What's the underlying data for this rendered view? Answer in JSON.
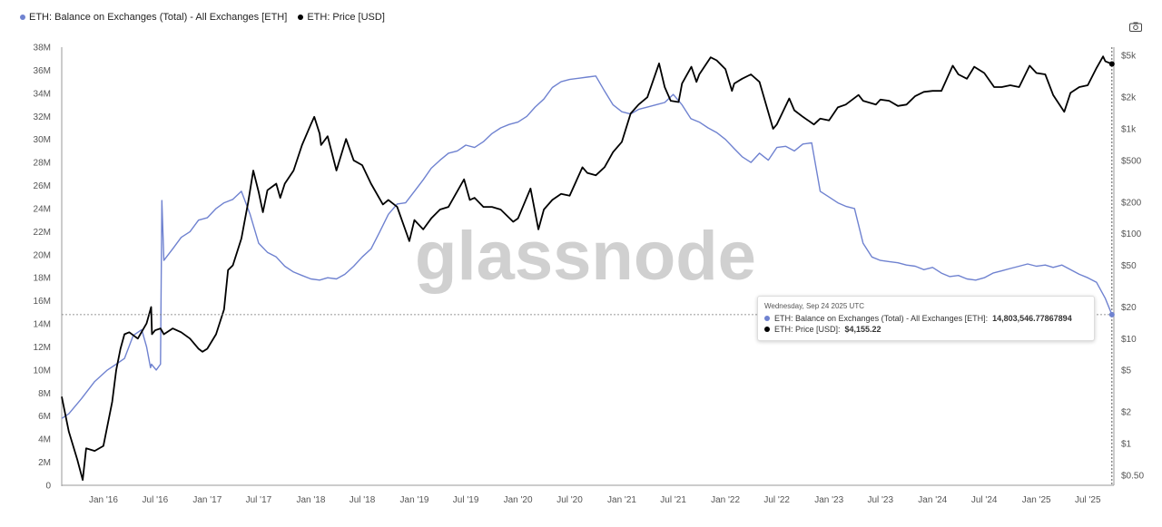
{
  "legend": [
    {
      "label": "ETH: Balance on Exchanges (Total) - All Exchanges [ETH]",
      "color": "#6f82d0"
    },
    {
      "label": "ETH: Price [USD]",
      "color": "#000000"
    }
  ],
  "watermark": "glassnode",
  "camera_icon": "camera-icon",
  "tooltip": {
    "date": "Wednesday, Sep 24 2025 UTC",
    "rows": [
      {
        "label": "ETH: Balance on Exchanges (Total) - All Exchanges [ETH]:",
        "value": "14,803,546.77867894",
        "color": "#6f82d0"
      },
      {
        "label": "ETH: Price [USD]:",
        "value": "$4,155.22",
        "color": "#000000"
      }
    ]
  },
  "chart_data": {
    "type": "line",
    "x_ticks": [
      "Jan '16",
      "Jul '16",
      "Jan '17",
      "Jul '17",
      "Jan '18",
      "Jul '18",
      "Jan '19",
      "Jul '19",
      "Jan '20",
      "Jul '20",
      "Jan '21",
      "Jul '21",
      "Jan '22",
      "Jul '22",
      "Jan '23",
      "Jul '23",
      "Jan '24",
      "Jul '24",
      "Jan '25",
      "Jul '25"
    ],
    "y_left_ticks": [
      "0",
      "2M",
      "4M",
      "6M",
      "8M",
      "10M",
      "12M",
      "14M",
      "16M",
      "18M",
      "20M",
      "22M",
      "24M",
      "26M",
      "28M",
      "30M",
      "32M",
      "34M",
      "36M",
      "38M"
    ],
    "y_right_ticks": [
      "$0.50",
      "$1",
      "$2",
      "$5",
      "$10",
      "$20",
      "$50",
      "$100",
      "$200",
      "$500",
      "$1k",
      "$2k",
      "$5k"
    ],
    "y_left_range": [
      0,
      38000000
    ],
    "y_right_scale": "log",
    "y_right_range": [
      0.4,
      6000
    ],
    "x_range": [
      "2015-08-07",
      "2025-10-01"
    ],
    "grid": false,
    "series": [
      {
        "name": "ETH: Balance on Exchanges (Total) - All Exchanges [ETH]",
        "axis": "left",
        "color": "#6f82d0",
        "x": [
          "2015-08-07",
          "2015-09-01",
          "2015-10-15",
          "2015-12-01",
          "2016-01-15",
          "2016-02-15",
          "2016-03-15",
          "2016-04-15",
          "2016-05-15",
          "2016-06-01",
          "2016-06-15",
          "2016-06-18",
          "2016-07-05",
          "2016-07-20",
          "2016-07-25",
          "2016-08-01",
          "2016-09-01",
          "2016-10-01",
          "2016-11-01",
          "2016-12-01",
          "2017-01-01",
          "2017-02-01",
          "2017-03-01",
          "2017-04-01",
          "2017-05-01",
          "2017-06-01",
          "2017-07-01",
          "2017-08-01",
          "2017-09-01",
          "2017-10-01",
          "2017-11-01",
          "2017-12-01",
          "2018-01-01",
          "2018-02-01",
          "2018-03-01",
          "2018-04-01",
          "2018-05-01",
          "2018-06-01",
          "2018-07-01",
          "2018-08-01",
          "2018-09-01",
          "2018-10-01",
          "2018-11-01",
          "2018-12-01",
          "2019-01-01",
          "2019-02-01",
          "2019-03-01",
          "2019-04-01",
          "2019-05-01",
          "2019-06-01",
          "2019-07-01",
          "2019-08-01",
          "2019-09-01",
          "2019-10-01",
          "2019-11-01",
          "2019-12-01",
          "2020-01-01",
          "2020-02-01",
          "2020-03-01",
          "2020-04-01",
          "2020-05-01",
          "2020-06-01",
          "2020-07-01",
          "2020-08-01",
          "2020-09-01",
          "2020-10-01",
          "2020-11-01",
          "2020-12-01",
          "2021-01-01",
          "2021-02-01",
          "2021-03-01",
          "2021-04-01",
          "2021-05-01",
          "2021-06-01",
          "2021-07-01",
          "2021-08-01",
          "2021-09-01",
          "2021-10-01",
          "2021-11-01",
          "2021-12-01",
          "2022-01-01",
          "2022-02-01",
          "2022-03-01",
          "2022-04-01",
          "2022-05-01",
          "2022-06-01",
          "2022-07-01",
          "2022-08-01",
          "2022-09-01",
          "2022-10-01",
          "2022-11-01",
          "2022-12-01",
          "2023-01-01",
          "2023-02-01",
          "2023-03-01",
          "2023-04-01",
          "2023-05-01",
          "2023-06-01",
          "2023-07-01",
          "2023-08-01",
          "2023-09-01",
          "2023-10-01",
          "2023-11-01",
          "2023-12-01",
          "2024-01-01",
          "2024-02-01",
          "2024-03-01",
          "2024-04-01",
          "2024-05-01",
          "2024-06-01",
          "2024-07-01",
          "2024-08-01",
          "2024-09-01",
          "2024-10-01",
          "2024-11-01",
          "2024-12-01",
          "2025-01-01",
          "2025-02-01",
          "2025-03-01",
          "2025-04-01",
          "2025-05-01",
          "2025-06-01",
          "2025-07-01",
          "2025-08-01",
          "2025-09-01",
          "2025-09-24"
        ],
        "values": [
          5800000,
          6200000,
          7500000,
          9000000,
          10000000,
          10500000,
          11000000,
          13000000,
          13500000,
          12000000,
          10200000,
          10500000,
          10000000,
          10500000,
          24700000,
          19500000,
          20500000,
          21500000,
          22000000,
          23000000,
          23200000,
          24000000,
          24500000,
          24800000,
          25500000,
          23500000,
          21000000,
          20200000,
          19800000,
          19000000,
          18500000,
          18200000,
          17900000,
          17800000,
          18000000,
          17900000,
          18300000,
          19000000,
          19800000,
          20500000,
          22000000,
          23500000,
          24400000,
          24500000,
          25500000,
          26500000,
          27500000,
          28200000,
          28800000,
          29000000,
          29500000,
          29300000,
          29800000,
          30500000,
          31000000,
          31300000,
          31500000,
          32000000,
          32800000,
          33500000,
          34500000,
          35000000,
          35200000,
          35300000,
          35400000,
          35500000,
          34200000,
          33000000,
          32400000,
          32200000,
          32600000,
          32800000,
          33000000,
          33200000,
          33900000,
          33000000,
          31800000,
          31500000,
          31000000,
          30600000,
          30000000,
          29200000,
          28500000,
          28000000,
          28800000,
          28200000,
          29300000,
          29400000,
          29000000,
          29600000,
          29700000,
          25500000,
          25000000,
          24500000,
          24200000,
          24000000,
          21000000,
          19800000,
          19500000,
          19400000,
          19300000,
          19100000,
          19000000,
          18700000,
          18900000,
          18400000,
          18100000,
          18200000,
          17900000,
          17800000,
          18000000,
          18400000,
          18600000,
          18800000,
          19000000,
          19200000,
          19000000,
          19100000,
          18900000,
          19100000,
          18700000,
          18300000,
          18000000,
          17600000,
          16200000,
          14803546
        ]
      },
      {
        "name": "ETH: Price [USD]",
        "axis": "right",
        "color": "#000000",
        "x": [
          "2015-08-07",
          "2015-09-01",
          "2015-10-01",
          "2015-10-20",
          "2015-11-01",
          "2015-12-01",
          "2016-01-01",
          "2016-02-01",
          "2016-02-15",
          "2016-03-01",
          "2016-03-15",
          "2016-04-01",
          "2016-05-01",
          "2016-06-01",
          "2016-06-17",
          "2016-06-20",
          "2016-07-01",
          "2016-07-20",
          "2016-08-01",
          "2016-09-01",
          "2016-10-01",
          "2016-11-01",
          "2016-12-01",
          "2016-12-15",
          "2017-01-01",
          "2017-02-01",
          "2017-03-01",
          "2017-03-15",
          "2017-04-01",
          "2017-05-01",
          "2017-05-25",
          "2017-06-12",
          "2017-07-01",
          "2017-07-16",
          "2017-08-01",
          "2017-09-01",
          "2017-09-15",
          "2017-10-01",
          "2017-11-01",
          "2017-12-01",
          "2018-01-01",
          "2018-01-13",
          "2018-02-01",
          "2018-02-06",
          "2018-03-01",
          "2018-04-01",
          "2018-05-05",
          "2018-06-01",
          "2018-07-01",
          "2018-08-01",
          "2018-09-12",
          "2018-10-01",
          "2018-11-01",
          "2018-12-14",
          "2019-01-01",
          "2019-02-01",
          "2019-03-01",
          "2019-04-01",
          "2019-05-01",
          "2019-06-25",
          "2019-07-15",
          "2019-08-01",
          "2019-09-01",
          "2019-10-01",
          "2019-11-01",
          "2019-12-15",
          "2020-01-01",
          "2020-02-14",
          "2020-03-13",
          "2020-04-01",
          "2020-05-01",
          "2020-06-01",
          "2020-07-01",
          "2020-08-15",
          "2020-09-01",
          "2020-10-01",
          "2020-11-01",
          "2020-12-01",
          "2021-01-01",
          "2021-02-01",
          "2021-03-01",
          "2021-04-01",
          "2021-05-12",
          "2021-06-01",
          "2021-06-22",
          "2021-07-20",
          "2021-08-01",
          "2021-09-03",
          "2021-09-21",
          "2021-10-01",
          "2021-11-10",
          "2021-12-01",
          "2022-01-01",
          "2022-01-24",
          "2022-02-01",
          "2022-03-01",
          "2022-04-01",
          "2022-05-01",
          "2022-06-18",
          "2022-07-01",
          "2022-08-14",
          "2022-09-01",
          "2022-10-01",
          "2022-11-09",
          "2022-12-01",
          "2023-01-01",
          "2023-02-01",
          "2023-03-01",
          "2023-04-15",
          "2023-05-01",
          "2023-06-15",
          "2023-07-01",
          "2023-08-01",
          "2023-09-01",
          "2023-10-01",
          "2023-11-01",
          "2023-12-01",
          "2024-01-01",
          "2024-02-01",
          "2024-03-12",
          "2024-04-01",
          "2024-05-01",
          "2024-05-27",
          "2024-07-01",
          "2024-08-05",
          "2024-09-01",
          "2024-10-01",
          "2024-11-01",
          "2024-12-08",
          "2025-01-01",
          "2025-02-01",
          "2025-03-01",
          "2025-04-09",
          "2025-05-01",
          "2025-06-01",
          "2025-07-01",
          "2025-08-01",
          "2025-08-24",
          "2025-09-01",
          "2025-09-24"
        ],
        "values": [
          2.8,
          1.3,
          0.7,
          0.45,
          0.9,
          0.85,
          0.95,
          2.5,
          5.0,
          8.0,
          11.0,
          11.5,
          10.0,
          14.0,
          20.0,
          11.0,
          12.0,
          12.5,
          11.0,
          12.5,
          11.5,
          10.0,
          8.0,
          7.5,
          8.0,
          11.0,
          19.0,
          45.0,
          50.0,
          90.0,
          200.0,
          400.0,
          250.0,
          160.0,
          260.0,
          300.0,
          220.0,
          300.0,
          400.0,
          700.0,
          1100.0,
          1300.0,
          900.0,
          700.0,
          850.0,
          400.0,
          800.0,
          500.0,
          450.0,
          300.0,
          190.0,
          210.0,
          180.0,
          85.0,
          135.0,
          110.0,
          140.0,
          170.0,
          180.0,
          330.0,
          210.0,
          220.0,
          180.0,
          180.0,
          170.0,
          130.0,
          140.0,
          270.0,
          110.0,
          170.0,
          210.0,
          240.0,
          230.0,
          430.0,
          380.0,
          360.0,
          430.0,
          600.0,
          750.0,
          1400.0,
          1700.0,
          2000.0,
          4200.0,
          2500.0,
          1850.0,
          1800.0,
          2700.0,
          3900.0,
          2800.0,
          3300.0,
          4800.0,
          4500.0,
          3700.0,
          2300.0,
          2700.0,
          3000.0,
          3300.0,
          2800.0,
          1000.0,
          1100.0,
          1950.0,
          1500.0,
          1300.0,
          1100.0,
          1250.0,
          1200.0,
          1600.0,
          1700.0,
          2100.0,
          1850.0,
          1700.0,
          1900.0,
          1850.0,
          1650.0,
          1700.0,
          2050.0,
          2250.0,
          2300.0,
          2300.0,
          4000.0,
          3300.0,
          3000.0,
          3900.0,
          3400.0,
          2500.0,
          2500.0,
          2600.0,
          2500.0,
          4000.0,
          3400.0,
          3300.0,
          2100.0,
          1450.0,
          2200.0,
          2500.0,
          2600.0,
          3800.0,
          4900.0,
          4400.0,
          4155.22
        ]
      }
    ]
  }
}
